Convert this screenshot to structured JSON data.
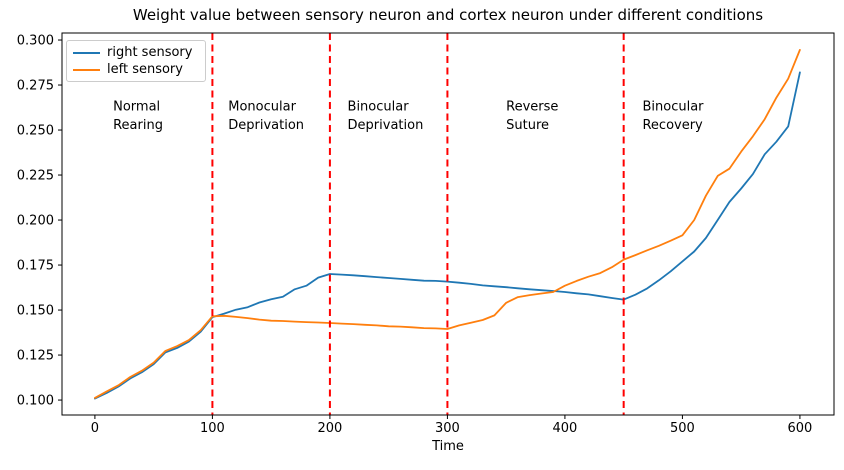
{
  "chart_data": {
    "type": "line",
    "title": "Weight value between sensory neuron and cortex neuron under different conditions",
    "xlabel": "Time",
    "ylabel": "",
    "xlim": [
      -28,
      629
    ],
    "ylim": [
      0.0917,
      0.3039
    ],
    "x_ticks": [
      0,
      100,
      200,
      300,
      400,
      500,
      600
    ],
    "x_tick_labels": [
      "0",
      "100",
      "200",
      "300",
      "400",
      "500",
      "600"
    ],
    "y_ticks": [
      0.1,
      0.125,
      0.15,
      0.175,
      0.2,
      0.225,
      0.25,
      0.275,
      0.3
    ],
    "y_tick_labels": [
      "0.100",
      "0.125",
      "0.150",
      "0.175",
      "0.200",
      "0.225",
      "0.250",
      "0.275",
      "0.300"
    ],
    "grid": false,
    "x": [
      0,
      10,
      20,
      30,
      40,
      50,
      60,
      70,
      80,
      90,
      100,
      110,
      120,
      130,
      140,
      150,
      160,
      170,
      180,
      190,
      200,
      210,
      220,
      230,
      240,
      250,
      260,
      270,
      280,
      290,
      300,
      310,
      320,
      330,
      340,
      350,
      360,
      370,
      380,
      390,
      400,
      410,
      420,
      430,
      440,
      450,
      460,
      470,
      480,
      490,
      500,
      510,
      520,
      530,
      540,
      550,
      560,
      570,
      580,
      590,
      600
    ],
    "series": [
      {
        "name": "right sensory",
        "color": "#1f77b4",
        "values": [
          0.1008,
          0.104,
          0.1075,
          0.112,
          0.1155,
          0.12,
          0.1265,
          0.129,
          0.1325,
          0.138,
          0.146,
          0.148,
          0.1502,
          0.1516,
          0.1542,
          0.156,
          0.1574,
          0.1615,
          0.1635,
          0.168,
          0.17,
          0.1697,
          0.1693,
          0.1688,
          0.1683,
          0.1678,
          0.1673,
          0.1668,
          0.1663,
          0.1662,
          0.1658,
          0.1652,
          0.1645,
          0.1637,
          0.1632,
          0.1627,
          0.1621,
          0.1615,
          0.161,
          0.1606,
          0.16,
          0.1593,
          0.1587,
          0.1577,
          0.1567,
          0.1558,
          0.1585,
          0.162,
          0.1665,
          0.1715,
          0.177,
          0.1825,
          0.19,
          0.2,
          0.21,
          0.2175,
          0.2255,
          0.2365,
          0.2435,
          0.252,
          0.282
        ]
      },
      {
        "name": "left sensory",
        "color": "#ff7f0e",
        "values": [
          0.1012,
          0.1048,
          0.1082,
          0.1128,
          0.1163,
          0.1208,
          0.1273,
          0.13,
          0.1333,
          0.1388,
          0.1465,
          0.1468,
          0.1462,
          0.1455,
          0.1447,
          0.1441,
          0.1439,
          0.1436,
          0.1433,
          0.1431,
          0.1428,
          0.1425,
          0.1422,
          0.1418,
          0.1415,
          0.141,
          0.1408,
          0.1404,
          0.14,
          0.1398,
          0.1395,
          0.1415,
          0.143,
          0.1445,
          0.147,
          0.154,
          0.1572,
          0.1583,
          0.1592,
          0.16,
          0.1635,
          0.1662,
          0.1685,
          0.1705,
          0.1738,
          0.178,
          0.1805,
          0.1832,
          0.1857,
          0.1885,
          0.1915,
          0.2,
          0.2135,
          0.2245,
          0.2285,
          0.238,
          0.2465,
          0.256,
          0.268,
          0.2785,
          0.2945
        ]
      }
    ],
    "phase_lines": {
      "x": [
        100,
        200,
        300,
        450
      ],
      "color": "#ff0000",
      "style": "dashed",
      "width": 2
    },
    "annotations": [
      {
        "lines": [
          "Normal",
          "Rearing"
        ],
        "x": 15.5,
        "y": 0.267
      },
      {
        "lines": [
          "Monocular",
          "Deprivation"
        ],
        "x": 113.5,
        "y": 0.267
      },
      {
        "lines": [
          "Binocular",
          "Deprivation"
        ],
        "x": 215,
        "y": 0.267
      },
      {
        "lines": [
          "Reverse",
          "Suture"
        ],
        "x": 350,
        "y": 0.267
      },
      {
        "lines": [
          "Binocular",
          "Recovery"
        ],
        "x": 466,
        "y": 0.267
      }
    ],
    "legend": {
      "position": "upper-left",
      "entries": [
        "right sensory",
        "left sensory"
      ]
    },
    "axis_color": "#000000",
    "background": "#ffffff"
  }
}
